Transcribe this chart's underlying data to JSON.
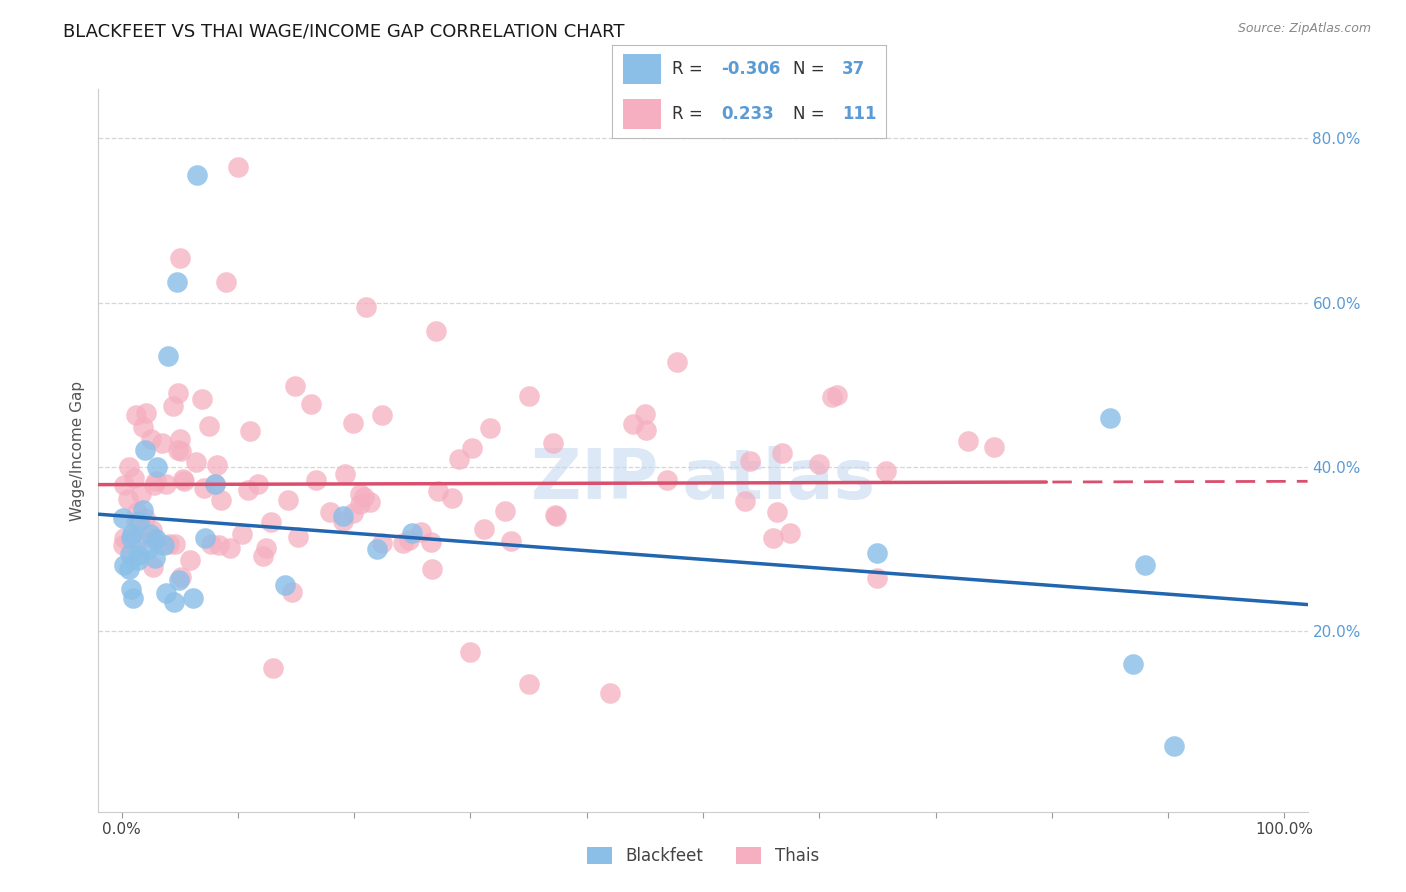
{
  "title": "BLACKFEET VS THAI WAGE/INCOME GAP CORRELATION CHART",
  "source": "Source: ZipAtlas.com",
  "ylabel": "Wage/Income Gap",
  "blackfeet_R": -0.306,
  "blackfeet_N": 37,
  "thai_R": 0.233,
  "thai_N": 111,
  "blackfeet_color": "#8bbfe8",
  "thai_color": "#f5afc0",
  "blackfeet_line_color": "#2266b0",
  "thai_line_color": "#d94f6e",
  "background_color": "#ffffff",
  "grid_color": "#cccccc",
  "xlim": [
    -0.02,
    1.02
  ],
  "ylim": [
    -0.02,
    0.86
  ],
  "y_ticks": [
    0.2,
    0.4,
    0.6,
    0.8
  ],
  "y_tick_labels": [
    "20.0%",
    "40.0%",
    "60.0%",
    "80.0%"
  ],
  "title_fontsize": 13,
  "axis_fontsize": 11,
  "tick_fontsize": 11,
  "watermark_color": "#c5d9ef",
  "watermark_alpha": 0.6
}
